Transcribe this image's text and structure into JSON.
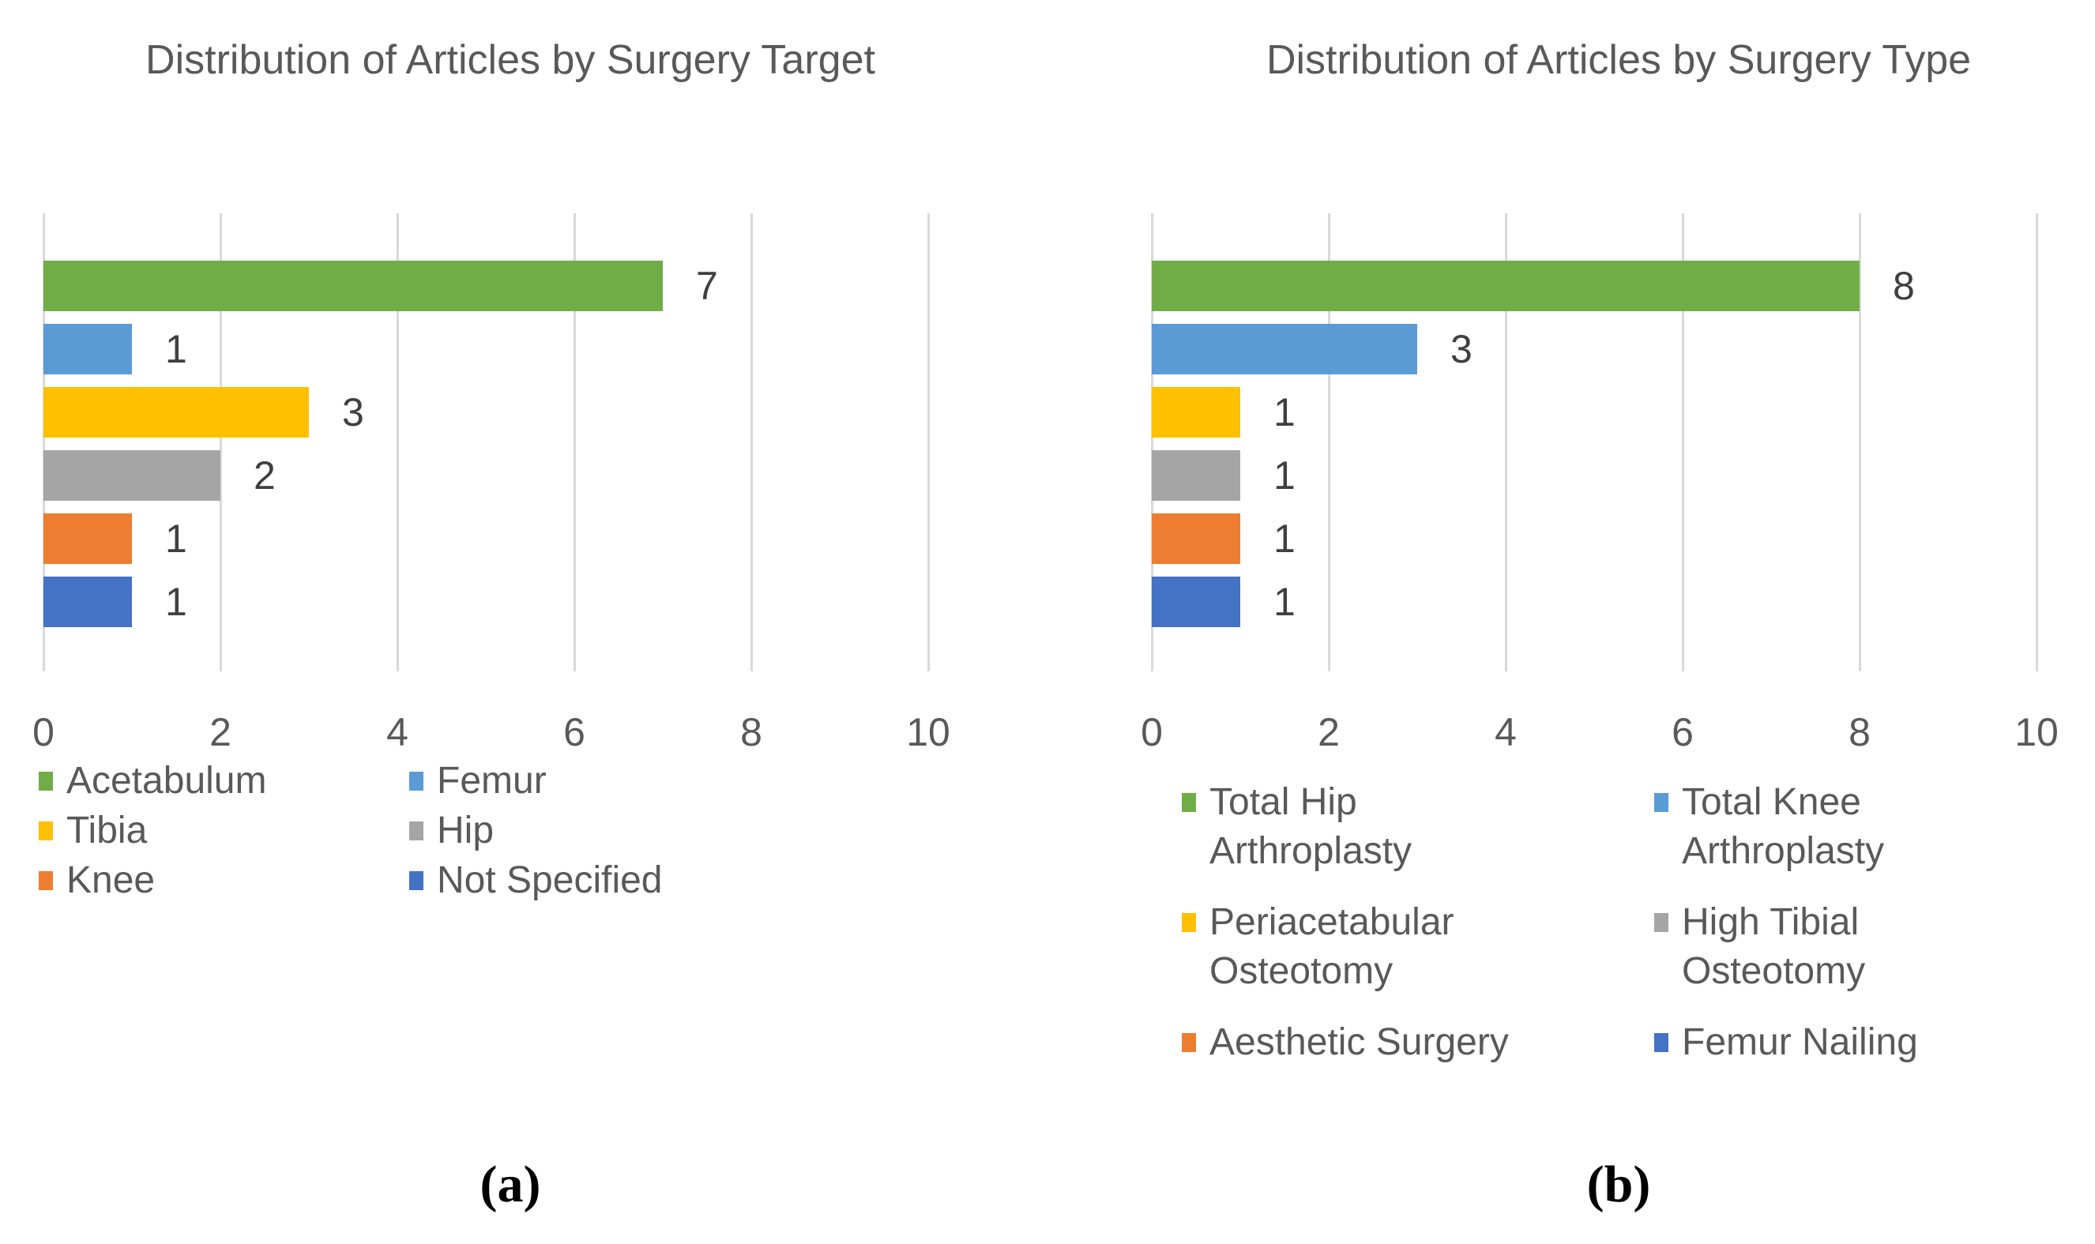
{
  "figure": {
    "background": "#FFFFFF",
    "captions": [
      "(a)",
      "(b)"
    ]
  },
  "style_colors": {
    "title_text": "#595959",
    "axis_tick_text": "#595959",
    "legend_text": "#595959",
    "data_label_text": "#3F3F3F",
    "gridline": "#D9D9D9"
  },
  "chart_data": [
    {
      "type": "bar",
      "orientation": "horizontal",
      "title": "Distribution of Articles by Surgery Target",
      "caption": "(a)",
      "categories": [
        "Acetabulum",
        "Femur",
        "Tibia",
        "Hip",
        "Knee",
        "Not Specified"
      ],
      "values": [
        7,
        1,
        3,
        2,
        1,
        1
      ],
      "data_labels": [
        "7",
        "1",
        "3",
        "2",
        "1",
        "1"
      ],
      "colors": [
        "#70AD47",
        "#5B9BD5",
        "#FFC000",
        "#A5A5A5",
        "#ED7D31",
        "#4472C4"
      ],
      "xlim": [
        0,
        10
      ],
      "xticks": [
        "0",
        "2",
        "4",
        "6",
        "8",
        "10"
      ],
      "grid": true,
      "legend_position": "bottom",
      "legend_columns": 2
    },
    {
      "type": "bar",
      "orientation": "horizontal",
      "title": "Distribution of Articles by Surgery Type",
      "caption": "(b)",
      "categories": [
        "Total Hip Arthroplasty",
        "Total Knee Arthroplasty",
        "Periacetabular Osteotomy",
        "High Tibial Osteotomy",
        "Aesthetic Surgery",
        "Femur Nailing"
      ],
      "values": [
        8,
        3,
        1,
        1,
        1,
        1
      ],
      "data_labels": [
        "8",
        "3",
        "1",
        "1",
        "1",
        "1"
      ],
      "colors": [
        "#70AD47",
        "#5B9BD5",
        "#FFC000",
        "#A5A5A5",
        "#ED7D31",
        "#4472C4"
      ],
      "xlim": [
        0,
        10
      ],
      "xticks": [
        "0",
        "2",
        "4",
        "6",
        "8",
        "10"
      ],
      "grid": true,
      "legend_position": "bottom",
      "legend_columns": 2
    }
  ]
}
